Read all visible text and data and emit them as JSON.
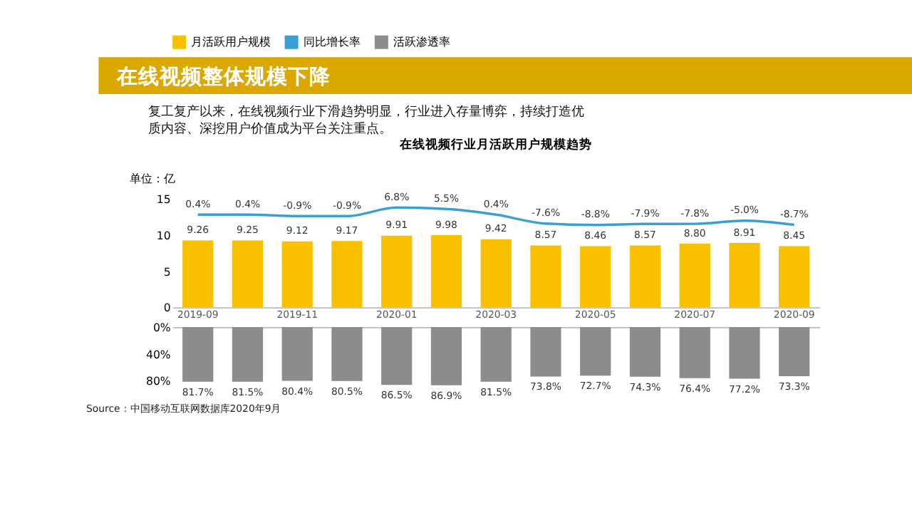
{
  "chart_data": [
    {
      "type": "bar",
      "title": "在线视频行业月活跃用户规模趋势",
      "ylabel": "单位：亿",
      "annotations": [
        "在线视频整体规模下降",
        "复工复产以来，在线视频行业下滑趋势明显，行业进入存量博弈，持续打造优",
        "质内容、深挖用户价值成为平台关注重点。"
      ],
      "categories": [
        "2019-09",
        null,
        "2019-11",
        null,
        "2020-01",
        null,
        "2020-03",
        null,
        "2020-05",
        null,
        "2020-07",
        null,
        "2020-09"
      ],
      "series": [
        {
          "name": "月活跃用户规模",
          "color": "#f9c000",
          "values": [
            9.26,
            9.25,
            9.12,
            9.17,
            9.91,
            9.98,
            9.42,
            8.57,
            8.46,
            8.57,
            8.8,
            8.91,
            8.45
          ],
          "value_labels": [
            "9.26",
            "9.25",
            "9.12",
            "9.17",
            "9.91",
            "9.98",
            "9.42",
            "8.57",
            "8.46",
            "8.57",
            "8.80",
            "8.91",
            "8.45"
          ]
        },
        {
          "name": "同比增长率",
          "type": "line",
          "axis": "y2",
          "color": "#3a9fd4",
          "values": [
            0.4,
            0.4,
            -0.9,
            -0.9,
            6.8,
            5.5,
            0.4,
            -7.6,
            -8.8,
            -7.9,
            -7.8,
            -5.0,
            -8.7
          ],
          "value_labels": [
            "0.4%",
            "0.4%",
            "-0.9%",
            "-0.9%",
            "6.8%",
            "5.5%",
            "0.4%",
            "-7.6%",
            "-8.8%",
            "-7.9%",
            "-7.8%",
            "-5.0%",
            "-8.7%"
          ]
        }
      ],
      "ylim": [
        0,
        15
      ],
      "yticks": [
        0,
        5,
        10,
        15
      ],
      "legend": "top",
      "grid": false
    },
    {
      "type": "bar",
      "categories": [
        null,
        null,
        null,
        null,
        null,
        null,
        null,
        null,
        null,
        null,
        null,
        null,
        null
      ],
      "series": [
        {
          "name": "活跃渗透率",
          "color": "#8c8c8c",
          "values": [
            81.7,
            81.5,
            80.4,
            80.5,
            86.5,
            86.9,
            81.5,
            73.8,
            72.7,
            74.3,
            76.4,
            77.2,
            73.3
          ],
          "value_labels": [
            "81.7%",
            "81.5%",
            "80.4%",
            "80.5%",
            "86.5%",
            "86.9%",
            "81.5%",
            "73.8%",
            "72.7%",
            "74.3%",
            "76.4%",
            "77.2%",
            "73.3%"
          ]
        }
      ],
      "ylim": [
        92,
        0
      ],
      "yticks": [
        {
          "value": 0,
          "label": "0%"
        },
        {
          "value": 40,
          "label": "40%"
        },
        {
          "value": 80,
          "label": "80%"
        }
      ],
      "legend": "top",
      "grid": false,
      "tick_labels": "y",
      "annotations": [
        "Source：中国移动互联网数据库2020年9月"
      ]
    }
  ]
}
